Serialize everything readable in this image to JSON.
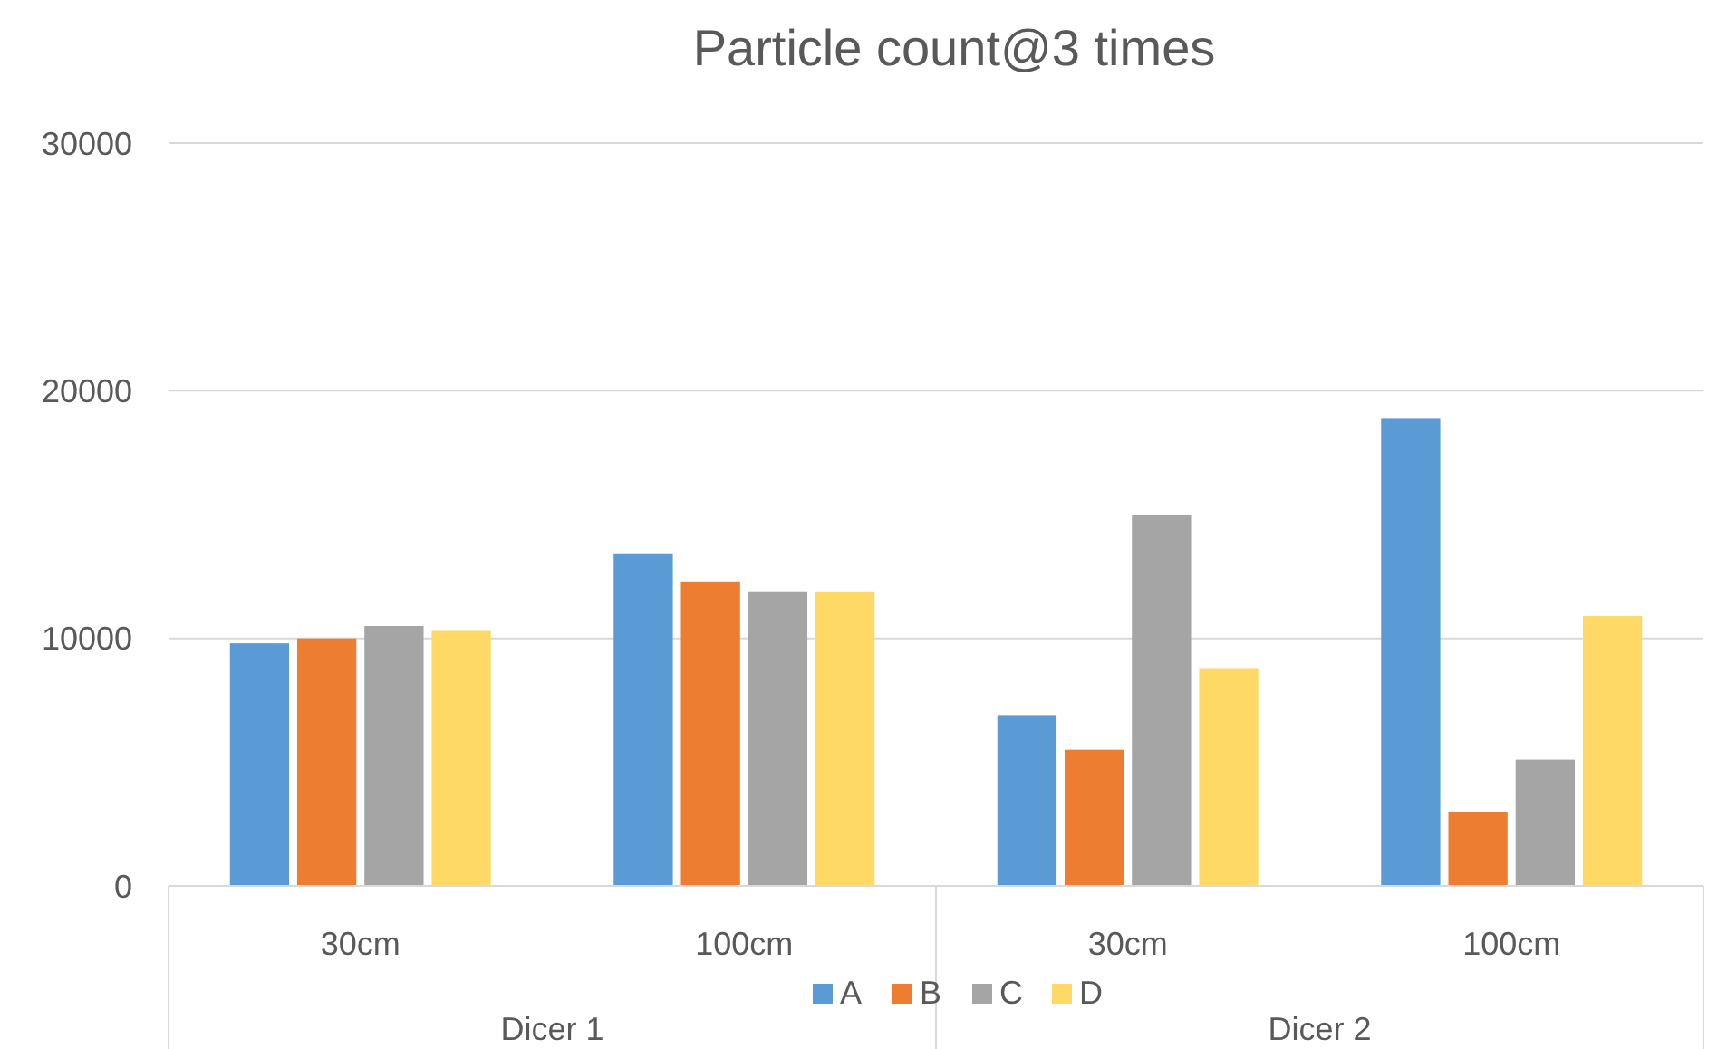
{
  "chart_data": {
    "type": "bar",
    "title": "Particle  count@3 times",
    "categories": [
      "30cm",
      "100cm",
      "30cm",
      "100cm"
    ],
    "annotations": [
      "Dicer 1",
      "Dicer 2"
    ],
    "series": [
      {
        "name": "A",
        "color": "#5b9bd5",
        "values": [
          9800,
          13400,
          6900,
          18900
        ]
      },
      {
        "name": "B",
        "color": "#ed7d31",
        "values": [
          10000,
          12300,
          5500,
          3000
        ]
      },
      {
        "name": "C",
        "color": "#a5a5a5",
        "values": [
          10500,
          11900,
          15000,
          5100
        ]
      },
      {
        "name": "D",
        "color": "#ffd966",
        "values": [
          10300,
          11900,
          8800,
          10900
        ]
      }
    ],
    "ylim": [
      0,
      30000
    ],
    "yticks": [
      0,
      10000,
      20000,
      30000
    ],
    "grid": "y",
    "legend": "bottom"
  }
}
